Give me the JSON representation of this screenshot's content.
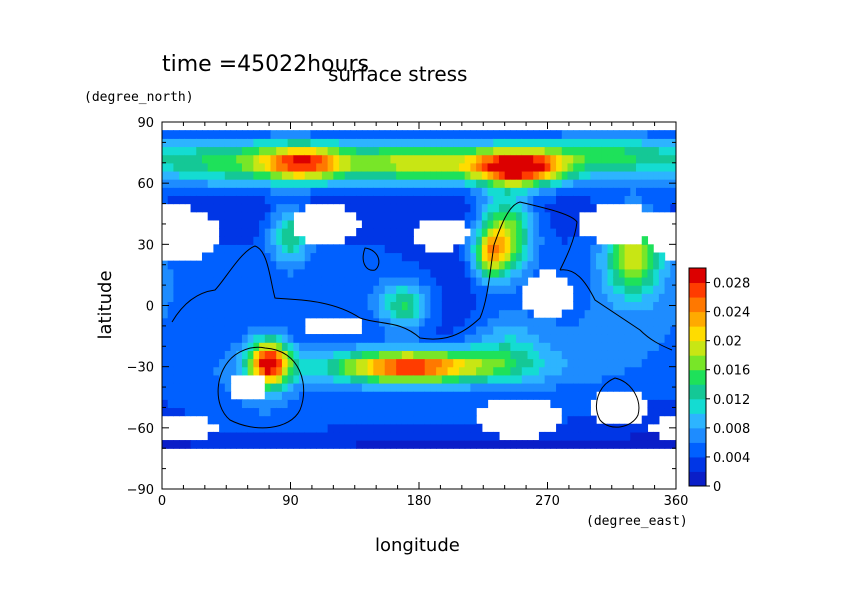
{
  "header": {
    "time_label": "time =45022hours"
  },
  "chart_data": {
    "type": "heatmap",
    "title": "surface stress",
    "xlabel": "longitude",
    "ylabel": "latitude",
    "x_unit": "(degree_east)",
    "y_unit": "(degree_north)",
    "xlim": [
      0,
      360
    ],
    "ylim": [
      -90,
      90
    ],
    "x_ticks": [
      "0",
      "90",
      "180",
      "270",
      "360"
    ],
    "x_tick_values": [
      0,
      90,
      180,
      270,
      360
    ],
    "y_ticks": [
      "90",
      "60",
      "30",
      "0",
      "−30",
      "−60",
      "−90"
    ],
    "y_tick_values": [
      90,
      60,
      30,
      0,
      -30,
      -60,
      -90
    ],
    "colorbar": {
      "ticks": [
        "0",
        "0.004",
        "0.008",
        "0.012",
        "0.016",
        "0.02",
        "0.024",
        "0.028"
      ],
      "tick_values": [
        0,
        0.004,
        0.008,
        0.012,
        0.016,
        0.02,
        0.024,
        0.028
      ],
      "max": 0.03,
      "colors": [
        "#ffffff",
        "#0a1ec8",
        "#0036e6",
        "#0060ff",
        "#1e8cff",
        "#2db4ff",
        "#14dcd2",
        "#14c896",
        "#1ee15a",
        "#78e628",
        "#c8e614",
        "#ffdc00",
        "#ffaa00",
        "#ff7800",
        "#ff3c00",
        "#dc0000"
      ]
    },
    "grid": false,
    "blobs": [
      {
        "x": 0,
        "y": 72,
        "sx": 380,
        "sy": 10,
        "v": 0.008
      },
      {
        "x": 60,
        "y": 70,
        "sx": 40,
        "sy": 8,
        "v": 0.007
      },
      {
        "x": 100,
        "y": 70,
        "sx": 20,
        "sy": 6,
        "v": 0.016
      },
      {
        "x": 180,
        "y": 70,
        "sx": 35,
        "sy": 7,
        "v": 0.012
      },
      {
        "x": 250,
        "y": 68,
        "sx": 22,
        "sy": 6,
        "v": 0.024
      },
      {
        "x": 310,
        "y": 75,
        "sx": 30,
        "sy": 6,
        "v": 0.006
      },
      {
        "x": 90,
        "y": 35,
        "sx": 10,
        "sy": 10,
        "v": 0.011
      },
      {
        "x": 240,
        "y": 35,
        "sx": 14,
        "sy": 14,
        "v": 0.016
      },
      {
        "x": 330,
        "y": 25,
        "sx": 14,
        "sy": 14,
        "v": 0.014
      },
      {
        "x": 150,
        "y": 10,
        "sx": 40,
        "sy": 30,
        "v": 0.004
      },
      {
        "x": 170,
        "y": 0,
        "sx": 12,
        "sy": 8,
        "v": 0.01
      },
      {
        "x": 230,
        "y": 25,
        "sx": 8,
        "sy": 8,
        "v": 0.012
      },
      {
        "x": 75,
        "y": -28,
        "sx": 10,
        "sy": 8,
        "v": 0.024
      },
      {
        "x": 175,
        "y": -30,
        "sx": 55,
        "sy": 7,
        "v": 0.014
      },
      {
        "x": 175,
        "y": -30,
        "sx": 30,
        "sy": 5,
        "v": 0.012
      },
      {
        "x": 240,
        "y": -20,
        "sx": 20,
        "sy": 12,
        "v": 0.006
      },
      {
        "x": 60,
        "y": -45,
        "sx": 40,
        "sy": 20,
        "v": 0.004
      },
      {
        "x": 300,
        "y": -30,
        "sx": 50,
        "sy": 20,
        "v": 0.003
      },
      {
        "x": 180,
        "y": -55,
        "sx": 80,
        "sy": 10,
        "v": 0.004
      },
      {
        "x": 40,
        "y": 10,
        "sx": 60,
        "sy": 30,
        "v": 0.004
      },
      {
        "x": 300,
        "y": 10,
        "sx": 60,
        "sy": 40,
        "v": 0.004
      }
    ],
    "holes": [
      {
        "x": 10,
        "y": 35,
        "rx": 30,
        "ry": 14
      },
      {
        "x": 115,
        "y": 40,
        "rx": 25,
        "ry": 10
      },
      {
        "x": 320,
        "y": 40,
        "rx": 30,
        "ry": 10
      },
      {
        "x": 195,
        "y": 35,
        "rx": 20,
        "ry": 8
      },
      {
        "x": 270,
        "y": 5,
        "rx": 18,
        "ry": 12
      },
      {
        "x": 120,
        "y": -10,
        "rx": 20,
        "ry": 6
      },
      {
        "x": 320,
        "y": -50,
        "rx": 22,
        "ry": 10
      },
      {
        "x": 10,
        "y": -60,
        "rx": 30,
        "ry": 6
      },
      {
        "x": 250,
        "y": -55,
        "rx": 30,
        "ry": 10
      },
      {
        "x": 60,
        "y": -40,
        "rx": 12,
        "ry": 8
      },
      {
        "x": 0,
        "y": -88,
        "rx": 400,
        "ry": 20
      },
      {
        "x": 0,
        "y": 88,
        "rx": 400,
        "ry": 4
      }
    ]
  }
}
